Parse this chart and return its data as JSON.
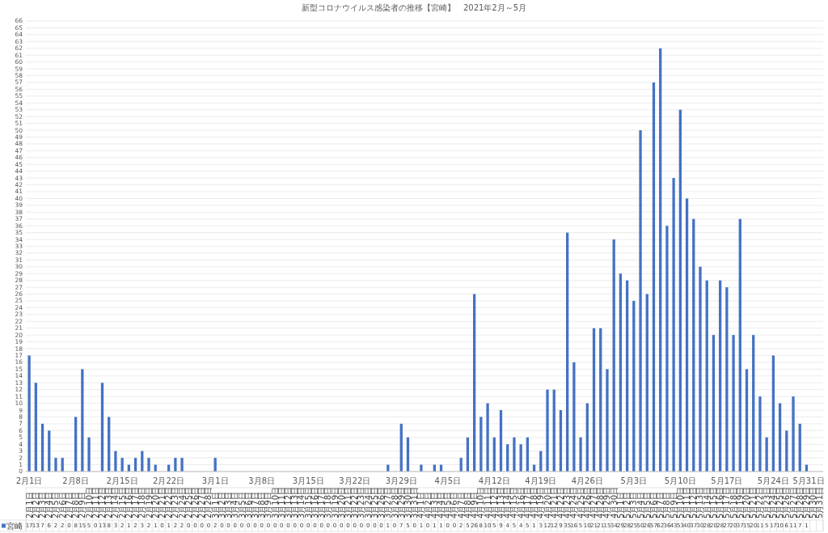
{
  "chart_data": {
    "type": "bar",
    "title": "新型コロナウイルス感染者の推移【宮崎】　2021年2月～5月",
    "categories": [
      "2月1日",
      "2月2日",
      "2月3日",
      "2月4日",
      "2月5日",
      "2月6日",
      "2月7日",
      "2月8日",
      "2月9日",
      "2月10日",
      "2月11日",
      "2月12日",
      "2月13日",
      "2月14日",
      "2月15日",
      "2月16日",
      "2月17日",
      "2月18日",
      "2月19日",
      "2月20日",
      "2月21日",
      "2月22日",
      "2月23日",
      "2月24日",
      "2月25日",
      "2月26日",
      "2月27日",
      "2月28日",
      "3月1日",
      "3月2日",
      "3月3日",
      "3月4日",
      "3月5日",
      "3月6日",
      "3月7日",
      "3月8日",
      "3月9日",
      "3月10日",
      "3月11日",
      "3月12日",
      "3月13日",
      "3月14日",
      "3月15日",
      "3月16日",
      "3月17日",
      "3月18日",
      "3月19日",
      "3月20日",
      "3月21日",
      "3月22日",
      "3月23日",
      "3月24日",
      "3月25日",
      "3月26日",
      "3月27日",
      "3月28日",
      "3月29日",
      "3月30日",
      "3月31日",
      "4月1日",
      "4月2日",
      "4月3日",
      "4月4日",
      "4月5日",
      "4月6日",
      "4月7日",
      "4月8日",
      "4月9日",
      "4月10日",
      "4月11日",
      "4月12日",
      "4月13日",
      "4月14日",
      "4月15日",
      "4月16日",
      "4月17日",
      "4月18日",
      "4月19日",
      "4月20日",
      "4月21日",
      "4月22日",
      "4月23日",
      "4月24日",
      "4月25日",
      "4月26日",
      "4月27日",
      "4月28日",
      "4月29日",
      "4月30日",
      "5月1日",
      "5月2日",
      "5月3日",
      "5月4日",
      "5月5日",
      "5月6日",
      "5月7日",
      "5月8日",
      "5月9日",
      "5月10日",
      "5月11日",
      "5月12日",
      "5月13日",
      "5月14日",
      "5月15日",
      "5月16日",
      "5月17日",
      "5月18日",
      "5月19日",
      "5月20日",
      "5月21日",
      "5月22日",
      "5月23日",
      "5月24日",
      "5月25日",
      "5月26日",
      "5月27日",
      "5月28日",
      "5月29日",
      "5月30日",
      "5月31日"
    ],
    "series": [
      {
        "name": "宮崎",
        "color": "#4472c4",
        "values": [
          17,
          13,
          7,
          6,
          2,
          2,
          0,
          8,
          15,
          5,
          0,
          13,
          8,
          3,
          2,
          1,
          2,
          3,
          2,
          1,
          0,
          1,
          2,
          2,
          0,
          0,
          0,
          0,
          2,
          0,
          0,
          0,
          0,
          0,
          0,
          0,
          0,
          0,
          0,
          0,
          0,
          0,
          0,
          0,
          0,
          0,
          0,
          0,
          0,
          0,
          0,
          0,
          0,
          0,
          1,
          0,
          7,
          5,
          0,
          1,
          0,
          1,
          1,
          0,
          0,
          2,
          5,
          26,
          8,
          10,
          5,
          9,
          4,
          5,
          4,
          5,
          1,
          3,
          12,
          12,
          9,
          35,
          16,
          5,
          10,
          21,
          21,
          15,
          34,
          29,
          28,
          25,
          50,
          26,
          57,
          62,
          36,
          43,
          53,
          40,
          37,
          30,
          28,
          20,
          28,
          27,
          20,
          37,
          15,
          20,
          11,
          5,
          17,
          10,
          6,
          11,
          7,
          1,
          null,
          null
        ]
      }
    ],
    "ylim": [
      0,
      66
    ],
    "yticks": [
      0,
      1,
      2,
      3,
      4,
      5,
      6,
      7,
      8,
      9,
      10,
      11,
      12,
      13,
      14,
      15,
      16,
      17,
      18,
      19,
      20,
      21,
      22,
      23,
      24,
      25,
      26,
      27,
      28,
      29,
      30,
      31,
      32,
      33,
      34,
      35,
      36,
      37,
      38,
      39,
      40,
      41,
      42,
      43,
      44,
      45,
      46,
      47,
      48,
      49,
      50,
      51,
      52,
      53,
      54,
      55,
      56,
      57,
      58,
      59,
      60,
      61,
      62,
      63,
      64,
      65,
      66
    ],
    "grid": "y",
    "data_labels": true
  }
}
